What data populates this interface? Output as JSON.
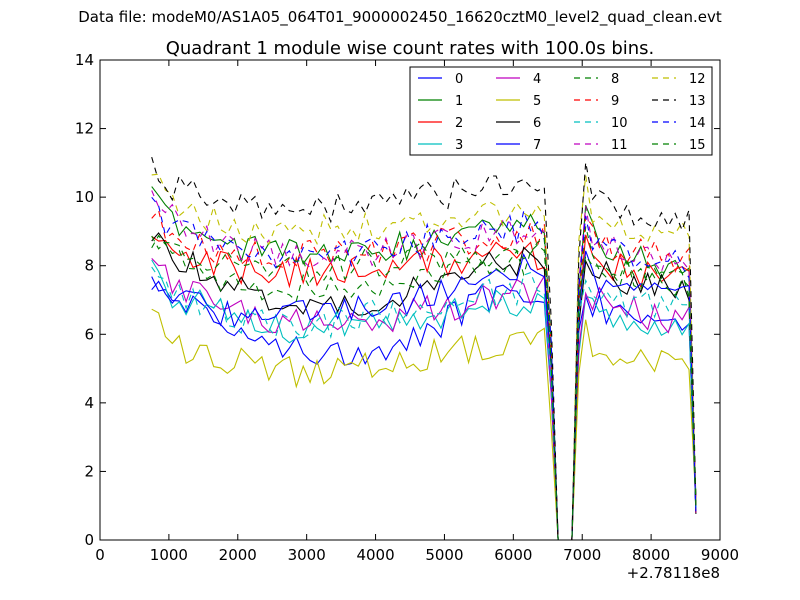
{
  "figure": {
    "suptitle": "Data file: modeM0/AS1A05_064T01_9000002450_16620cztM0_level2_quad_clean.evt"
  },
  "chart_data": {
    "type": "line",
    "title": "Quadrant 1 module wise count rates with 100.0s bins.",
    "xlabel": "",
    "ylabel": "",
    "x_offset_label": "+2.78118e8",
    "xlim": [
      0,
      9000
    ],
    "ylim": [
      0,
      14
    ],
    "xticks": [
      0,
      1000,
      2000,
      3000,
      4000,
      5000,
      6000,
      7000,
      8000,
      9000
    ],
    "yticks": [
      0,
      2,
      4,
      6,
      8,
      10,
      12,
      14
    ],
    "legend_location": "top-right",
    "legend_columns": 4,
    "anchors": {
      "x": [
        750,
        1000,
        1500,
        2000,
        2500,
        3000,
        3500,
        4000,
        4500,
        5000,
        5500,
        6000,
        6300,
        6450,
        6520,
        6600,
        6800,
        6900,
        6970,
        7100,
        7500,
        8000,
        8500,
        8600,
        8650
      ],
      "gap_shape": [
        0.75,
        0.97,
        1.0,
        1.0,
        1.0,
        1.0,
        1.0,
        1.0,
        1.0,
        1.0,
        1.0,
        1.0,
        1.0,
        1.1,
        0.85,
        0.0,
        0.0,
        0.25,
        1.32,
        1.08,
        1.0,
        1.0,
        1.0,
        0.9,
        0.1
      ]
    },
    "series": [
      {
        "name": "0",
        "color": "#0000ff",
        "dashed": false,
        "levels": [
          7.8,
          7.2,
          6.6,
          6.0,
          5.8,
          5.6,
          5.5,
          5.6,
          5.8,
          6.4,
          7.0,
          7.2,
          7.3,
          7.3,
          7.1,
          0,
          0,
          0,
          8.2,
          7.0,
          6.6,
          6.4,
          6.3,
          6.3,
          6.3
        ]
      },
      {
        "name": "1",
        "color": "#008000",
        "dashed": false,
        "levels": [
          10.1,
          9.4,
          8.8,
          8.6,
          8.4,
          8.3,
          8.4,
          8.5,
          8.6,
          8.8,
          9.0,
          9.1,
          9.1,
          9.1,
          8.9,
          0,
          0,
          0,
          10.5,
          9.0,
          8.4,
          8.1,
          8.0,
          8.0,
          8.0
        ]
      },
      {
        "name": "2",
        "color": "#ff0000",
        "dashed": false,
        "levels": [
          8.7,
          8.5,
          8.1,
          7.9,
          7.8,
          7.8,
          7.8,
          7.9,
          8.0,
          8.1,
          8.2,
          8.3,
          8.3,
          8.3,
          8.1,
          0,
          0,
          0,
          9.5,
          8.3,
          7.9,
          7.7,
          7.6,
          7.6,
          7.6
        ]
      },
      {
        "name": "3",
        "color": "#00bfbf",
        "dashed": false,
        "levels": [
          7.9,
          7.2,
          6.8,
          6.5,
          6.2,
          6.1,
          6.3,
          6.4,
          6.5,
          6.6,
          6.8,
          6.9,
          7.0,
          7.0,
          6.8,
          0,
          0,
          0,
          7.8,
          6.8,
          6.5,
          6.4,
          6.3,
          6.3,
          6.3
        ]
      },
      {
        "name": "4",
        "color": "#bf00bf",
        "dashed": false,
        "levels": [
          8.2,
          7.6,
          7.0,
          6.6,
          6.4,
          6.3,
          6.3,
          6.4,
          6.6,
          6.8,
          7.0,
          7.2,
          7.3,
          7.3,
          7.1,
          0,
          0,
          0,
          8.2,
          7.2,
          6.8,
          6.5,
          6.4,
          6.4,
          6.4
        ]
      },
      {
        "name": "5",
        "color": "#bfbf00",
        "dashed": false,
        "levels": [
          6.7,
          5.6,
          5.5,
          5.2,
          4.9,
          4.9,
          5.1,
          5.2,
          5.3,
          5.5,
          5.6,
          5.8,
          5.8,
          5.8,
          5.6,
          0,
          0,
          0,
          6.8,
          5.8,
          5.5,
          5.2,
          5.1,
          5.1,
          5.1
        ]
      },
      {
        "name": "6",
        "color": "#000000",
        "dashed": false,
        "levels": [
          8.8,
          8.4,
          7.8,
          7.4,
          7.0,
          6.8,
          6.9,
          7.0,
          7.3,
          7.6,
          7.9,
          8.1,
          8.2,
          8.2,
          8.0,
          0,
          0,
          0,
          8.9,
          8.0,
          7.6,
          7.4,
          7.3,
          7.3,
          7.3
        ]
      },
      {
        "name": "7",
        "color": "#0000ff",
        "dashed": false,
        "levels": [
          7.5,
          7.0,
          6.8,
          6.6,
          6.5,
          6.6,
          6.7,
          6.8,
          7.0,
          7.3,
          7.6,
          7.9,
          8.0,
          8.0,
          7.8,
          0,
          0,
          0,
          8.7,
          7.8,
          7.3,
          7.1,
          7.0,
          7.0,
          7.0
        ]
      },
      {
        "name": "8",
        "color": "#008000",
        "dashed": true,
        "levels": [
          8.7,
          8.3,
          7.8,
          7.5,
          7.3,
          7.3,
          7.4,
          7.5,
          7.6,
          7.8,
          8.0,
          8.1,
          8.2,
          8.2,
          8.0,
          0,
          0,
          0,
          9.8,
          8.3,
          7.9,
          7.6,
          7.5,
          7.5,
          7.5
        ]
      },
      {
        "name": "9",
        "color": "#ff0000",
        "dashed": true,
        "levels": [
          9.7,
          9.0,
          8.6,
          8.4,
          8.3,
          8.3,
          8.3,
          8.4,
          8.5,
          8.7,
          8.8,
          8.9,
          9.0,
          9.0,
          8.8,
          0,
          0,
          0,
          10.5,
          8.9,
          8.5,
          8.3,
          8.2,
          8.2,
          8.2
        ]
      },
      {
        "name": "10",
        "color": "#00bfbf",
        "dashed": true,
        "levels": [
          7.8,
          7.2,
          6.8,
          6.5,
          6.3,
          6.3,
          6.4,
          6.6,
          6.8,
          7.0,
          7.2,
          7.3,
          7.4,
          7.4,
          7.2,
          0,
          0,
          0,
          8.6,
          7.4,
          7.0,
          6.8,
          6.7,
          6.7,
          6.7
        ]
      },
      {
        "name": "11",
        "color": "#bf00bf",
        "dashed": true,
        "levels": [
          10.3,
          9.4,
          8.9,
          8.5,
          8.3,
          8.2,
          8.3,
          8.4,
          8.5,
          8.7,
          8.9,
          9.0,
          9.1,
          9.1,
          8.9,
          0,
          0,
          0,
          10.8,
          9.0,
          8.5,
          8.2,
          8.0,
          8.0,
          8.0
        ]
      },
      {
        "name": "12",
        "color": "#bfbf00",
        "dashed": true,
        "levels": [
          10.7,
          9.8,
          9.4,
          9.1,
          9.0,
          9.0,
          9.1,
          9.2,
          9.3,
          9.4,
          9.5,
          9.6,
          9.6,
          9.6,
          9.4,
          0,
          0,
          0,
          11.7,
          9.6,
          9.2,
          9.1,
          9.0,
          9.0,
          9.0
        ]
      },
      {
        "name": "13",
        "color": "#000000",
        "dashed": true,
        "levels": [
          11.0,
          10.4,
          10.0,
          9.8,
          9.6,
          9.6,
          9.7,
          9.8,
          9.9,
          10.1,
          10.3,
          10.5,
          10.5,
          10.5,
          10.3,
          0,
          0,
          0,
          12.0,
          10.0,
          9.6,
          9.4,
          9.3,
          9.3,
          9.3
        ]
      },
      {
        "name": "14",
        "color": "#0000ff",
        "dashed": true,
        "levels": [
          9.7,
          9.2,
          8.8,
          8.6,
          8.4,
          8.3,
          8.4,
          8.5,
          8.7,
          8.9,
          9.0,
          9.1,
          9.2,
          9.2,
          9.0,
          0,
          0,
          0,
          10.2,
          8.9,
          8.4,
          8.1,
          8.0,
          8.0,
          8.0
        ]
      },
      {
        "name": "15",
        "color": "#008000",
        "dashed": true,
        "levels": [
          8.9,
          8.5,
          8.2,
          8.0,
          7.9,
          7.9,
          8.0,
          8.1,
          8.2,
          8.3,
          8.4,
          8.5,
          8.5,
          8.5,
          8.3,
          0,
          0,
          0,
          9.6,
          8.2,
          7.8,
          7.6,
          7.5,
          7.5,
          7.5
        ]
      }
    ]
  }
}
